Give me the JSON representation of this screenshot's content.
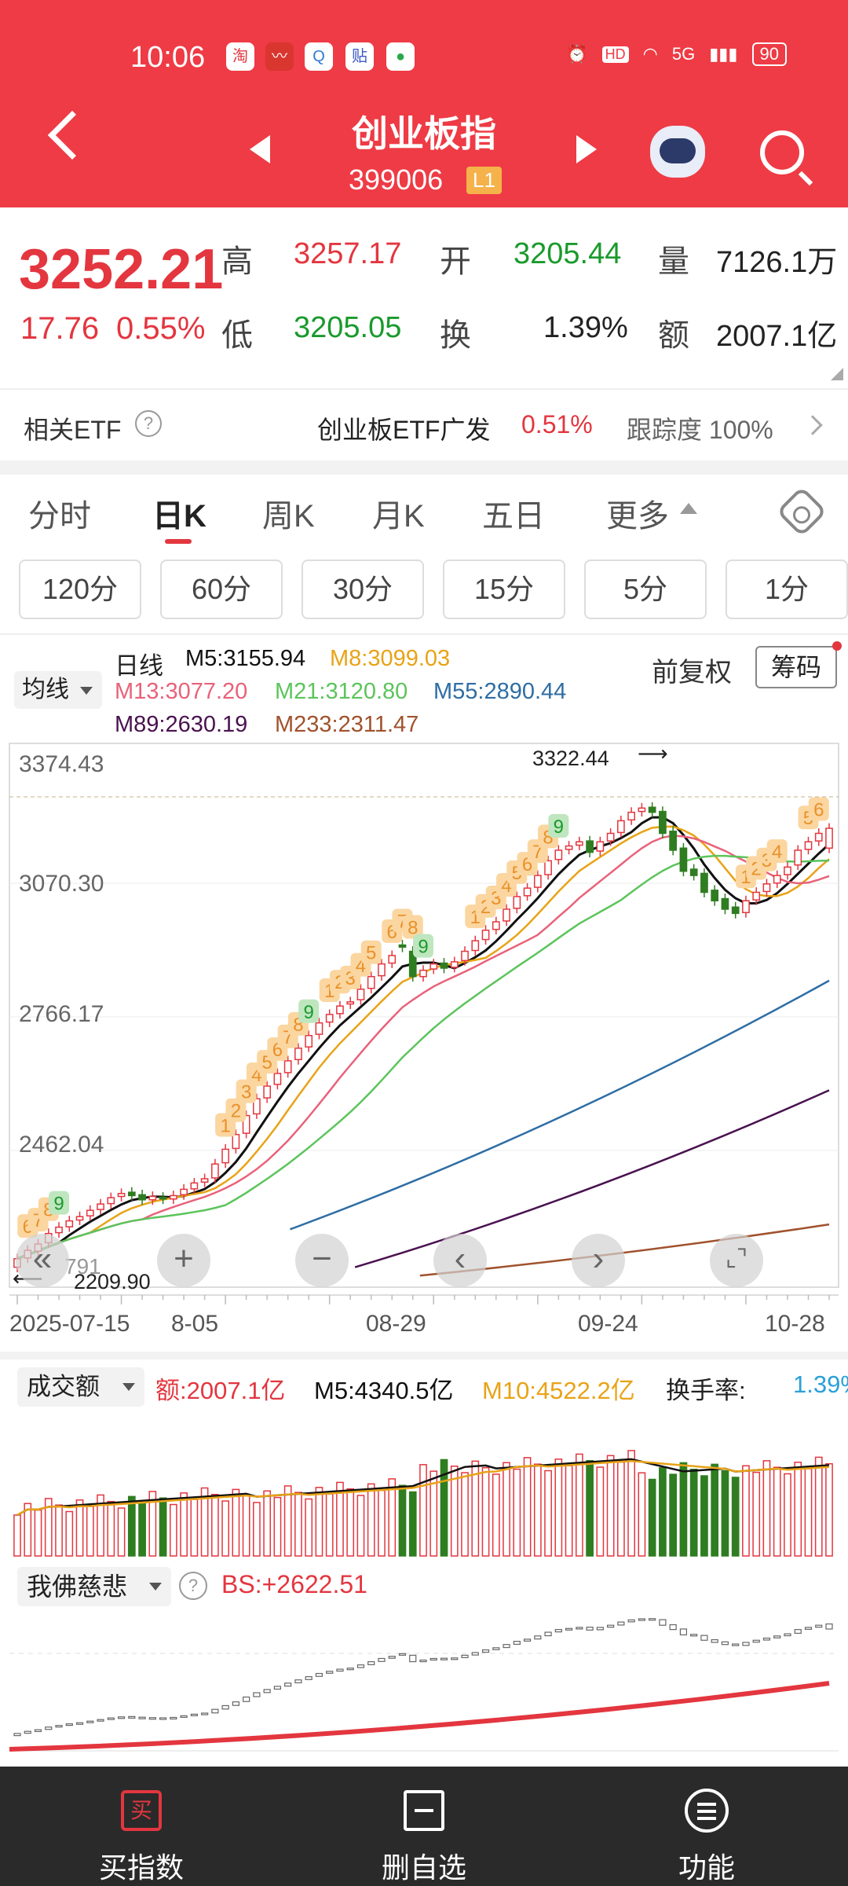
{
  "status_bar": {
    "time": "10:06",
    "network": "5G",
    "hd": "HD",
    "battery": "90"
  },
  "header": {
    "title": "创业板指",
    "code": "399006",
    "level_badge": "L1"
  },
  "quote": {
    "price": "3252.21",
    "change": "17.76",
    "change_pct": "0.55%",
    "high_label": "高",
    "high": "3257.17",
    "open_label": "开",
    "open": "3205.44",
    "volume_label": "量",
    "volume": "7126.1万",
    "low_label": "低",
    "low": "3205.05",
    "turnover_label": "换",
    "turnover": "1.39%",
    "amount_label": "额",
    "amount": "2007.1亿"
  },
  "etf": {
    "label": "相关ETF",
    "help": "?",
    "name": "创业板ETF广发",
    "pct": "0.51%",
    "tracking": "跟踪度 100%"
  },
  "period_tabs": [
    "分时",
    "日K",
    "周K",
    "月K",
    "五日",
    "更多"
  ],
  "minute_buttons": [
    "120分",
    "60分",
    "30分",
    "15分",
    "5分",
    "1分"
  ],
  "ma_legend": {
    "dropdown": "均线",
    "period": "日线",
    "m5": "M5:3155.94",
    "m8": "M8:3099.03",
    "m13": "M13:3077.20",
    "m21": "M21:3120.80",
    "m55": "M55:2890.44",
    "m89": "M89:2630.19",
    "m233": "M233:2311.47",
    "adjust": "前复权",
    "chips": "筹码"
  },
  "colors": {
    "accent": "#ee3b45",
    "up": "#e3363f",
    "down": "#1a9a2c",
    "m5": "#111111",
    "m8": "#e8a317",
    "m13": "#e8627a",
    "m21": "#5cc45c",
    "m55": "#2e6da4",
    "m89": "#4a1250",
    "m233": "#a0522d"
  },
  "price_axis": [
    "3374.43",
    "3070.30",
    "2766.17",
    "2462.04"
  ],
  "chart_notes": {
    "high_label": "3322.44",
    "low_label": "2209.90",
    "low_axis_partial": "791"
  },
  "chart_controls": [
    "«",
    "+",
    "−",
    "‹",
    "›",
    "⌞⌝"
  ],
  "dates": [
    "2025-07-15",
    "8-05",
    "08-29",
    "09-24",
    "10-28"
  ],
  "volume_panel": {
    "dropdown": "成交额",
    "amount": "额:2007.1亿",
    "m5": "M5:4340.5亿",
    "m10": "M10:4522.2亿",
    "turnover_label": "换手率:",
    "turnover": "1.39%"
  },
  "bs_panel": {
    "dropdown": "我佛慈悲",
    "help": "?",
    "value": "BS:+2622.51"
  },
  "bottom_nav": [
    "买指数",
    "删自选",
    "功能"
  ],
  "bottom_icons": {
    "buy": "买"
  },
  "chart_data": {
    "type": "candlestick",
    "x_start": "2025-07-15",
    "x_end": "2025-10-28",
    "x_ticks": [
      "2025-07-15",
      "8-05",
      "08-29",
      "09-24",
      "10-28"
    ],
    "y_ticks": [
      3374.43,
      3070.3,
      2766.17,
      2462.04
    ],
    "ylim": [
      2170,
      3420
    ],
    "close": [
      2230,
      2250,
      2265,
      2290,
      2305,
      2320,
      2330,
      2345,
      2360,
      2375,
      2385,
      2380,
      2370,
      2378,
      2372,
      2380,
      2395,
      2410,
      2420,
      2455,
      2490,
      2525,
      2570,
      2610,
      2640,
      2670,
      2700,
      2730,
      2760,
      2790,
      2810,
      2830,
      2840,
      2870,
      2900,
      2930,
      2950,
      2970,
      2900,
      2915,
      2930,
      2920,
      2935,
      2960,
      2985,
      3010,
      3030,
      3060,
      3090,
      3110,
      3140,
      3175,
      3200,
      3210,
      3220,
      3195,
      3220,
      3240,
      3270,
      3290,
      3300,
      3290,
      3240,
      3200,
      3150,
      3140,
      3100,
      3080,
      3060,
      3050,
      3080,
      3100,
      3120,
      3140,
      3160,
      3200,
      3220,
      3240,
      3252
    ],
    "open": [
      2210,
      2232,
      2248,
      2268,
      2292,
      2306,
      2322,
      2332,
      2347,
      2361,
      2378,
      2388,
      2382,
      2370,
      2376,
      2372,
      2382,
      2396,
      2412,
      2422,
      2458,
      2492,
      2528,
      2574,
      2612,
      2644,
      2672,
      2703,
      2733,
      2763,
      2792,
      2812,
      2835,
      2845,
      2872,
      2902,
      2932,
      2975,
      2960,
      2900,
      2918,
      2932,
      2922,
      2938,
      2962,
      2988,
      3012,
      3032,
      3062,
      3092,
      3112,
      3142,
      3178,
      3202,
      3212,
      3222,
      3198,
      3222,
      3242,
      3272,
      3292,
      3302,
      3292,
      3245,
      3205,
      3155,
      3145,
      3105,
      3085,
      3065,
      3052,
      3082,
      3102,
      3122,
      3142,
      3165,
      3202,
      3222,
      3205
    ],
    "ma_lines": {
      "M5": 3155.94,
      "M8": 3099.03,
      "M13": 3077.2,
      "M21": 3120.8,
      "M55": 2890.44,
      "M89": 2630.19,
      "M233": 2311.47
    }
  }
}
